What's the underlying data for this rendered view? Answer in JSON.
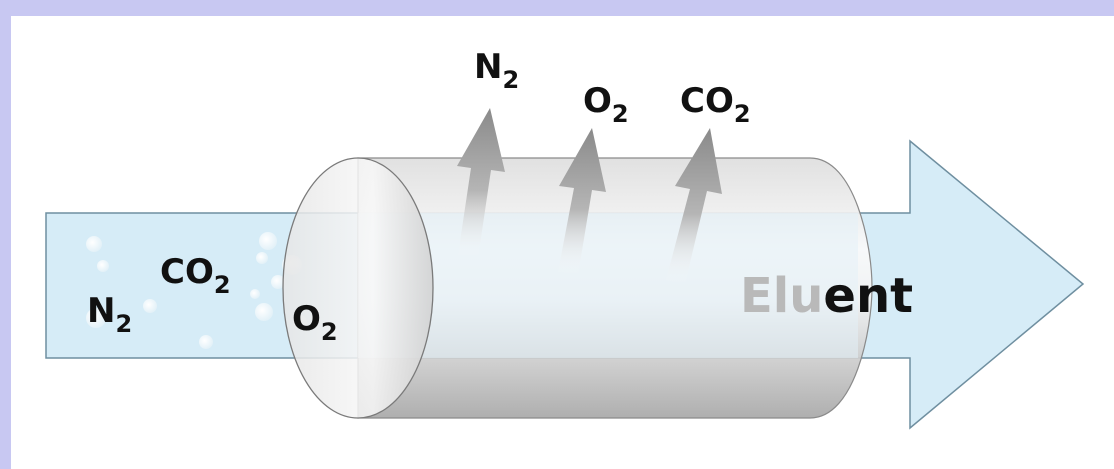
{
  "labels": {
    "inlet": {
      "n2": "N",
      "co2": "CO",
      "o2": "O",
      "sub": "2"
    },
    "outlet": {
      "n2": "N",
      "o2": "O",
      "co2": "CO",
      "sub": "2"
    },
    "eluent_faded": "Elu",
    "eluent_solid": "ent"
  },
  "colors": {
    "frame": "#c8c8f2",
    "arrow_fill": "#d6ecf7",
    "arrow_stroke": "#6f8fa0",
    "tube_light": "#f4f4f4",
    "tube_dark": "#b8b8b8",
    "gas_arrow": "#9a9a9a",
    "text": "#111111",
    "text_faded": "#b9b9b9"
  }
}
